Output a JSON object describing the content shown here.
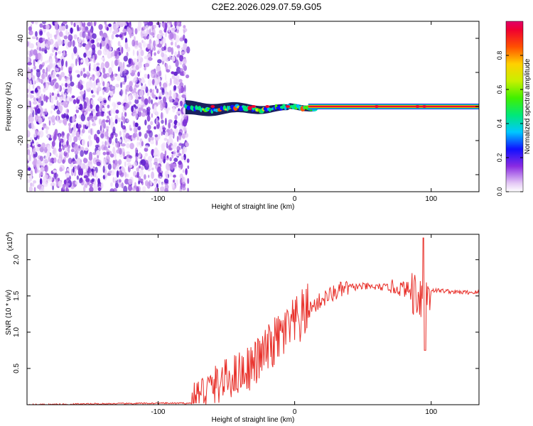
{
  "title": "C2E2.2026.029.07.59.G05",
  "chart_data": [
    {
      "type": "heatmap",
      "name": "spectrogram",
      "xlabel": "Height of straight line (km)",
      "ylabel": "Frequency (Hz)",
      "xlim": [
        -196,
        135
      ],
      "ylim": [
        -50,
        50
      ],
      "xticks": [
        -100,
        0,
        100
      ],
      "yticks": [
        -40,
        -20,
        0,
        20,
        40
      ],
      "colorbar": {
        "label": "Normalized spectral amplitude",
        "range": [
          0,
          1
        ],
        "ticks": [
          "0.0",
          "0.2",
          "0.4",
          "0.6",
          "0.8"
        ]
      },
      "noise_region_x": [
        -196,
        -80
      ],
      "signal_region_x": [
        -80,
        135
      ],
      "signal_band_hz": [
        -4,
        2
      ]
    },
    {
      "type": "line",
      "name": "snr",
      "xlabel": "Height of straight line (km)",
      "ylabel": "SNR (10 * v/v)",
      "y_multiplier_label": "(x10",
      "y_multiplier_exp": "4",
      "xlim": [
        -196,
        135
      ],
      "ylim": [
        0,
        2.35
      ],
      "xticks": [
        -100,
        0,
        100
      ],
      "yticks": [
        "0.5",
        "1.0",
        "1.5",
        "2.0"
      ],
      "line_color": "#e8302a",
      "series": [
        {
          "name": "SNR",
          "x": [
            -196,
            -150,
            -100,
            -75,
            -70,
            -60,
            -50,
            -40,
            -30,
            -20,
            -10,
            0,
            10,
            20,
            30,
            40,
            50,
            60,
            70,
            80,
            90,
            95,
            100,
            110,
            120,
            135
          ],
          "y": [
            0.0,
            0.01,
            0.02,
            0.02,
            0.15,
            0.25,
            0.35,
            0.45,
            0.55,
            0.75,
            0.95,
            1.1,
            1.3,
            1.45,
            1.55,
            1.62,
            1.63,
            1.62,
            1.62,
            1.6,
            1.55,
            1.5,
            1.58,
            1.57,
            1.55,
            1.55
          ]
        }
      ]
    }
  ]
}
